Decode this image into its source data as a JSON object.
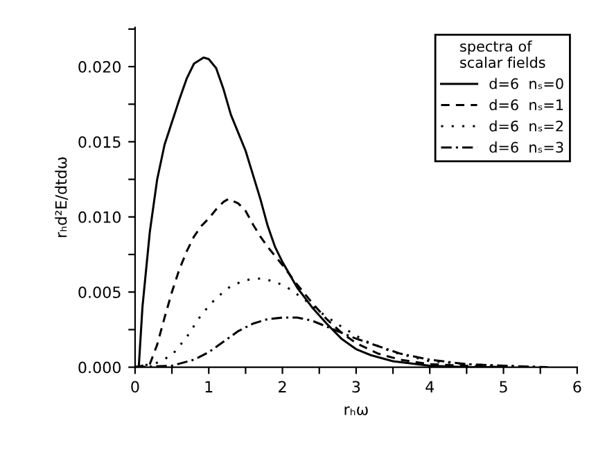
{
  "chart_data": {
    "type": "line",
    "xlabel": "rₕω",
    "ylabel": "rₕd²E/dtdω",
    "legend_title": "spectra of\nscalar fields",
    "legend": "top right",
    "grid": false,
    "marker": "none",
    "xlim": [
      0,
      6
    ],
    "ylim": [
      0,
      0.0226
    ],
    "xticks": [
      0,
      {
        "value": 0.5,
        "label": null
      },
      1,
      {
        "value": 1.5,
        "label": null
      },
      2,
      {
        "value": 2.5,
        "label": null
      },
      3,
      {
        "value": 3.5,
        "label": null
      },
      4,
      {
        "value": 4.5,
        "label": null
      },
      5,
      {
        "value": 5.5,
        "label": null
      },
      6
    ],
    "yticks": [
      {
        "value": 0,
        "label": "0.000"
      },
      {
        "value": 0.0025,
        "label": null
      },
      {
        "value": 0.005,
        "label": "0.005"
      },
      {
        "value": 0.0075,
        "label": null
      },
      {
        "value": 0.01,
        "label": "0.010"
      },
      {
        "value": 0.0125,
        "label": null
      },
      {
        "value": 0.015,
        "label": "0.015"
      },
      {
        "value": 0.0175,
        "label": null
      },
      {
        "value": 0.02,
        "label": "0.020"
      },
      {
        "value": 0.0225,
        "label": null
      }
    ],
    "series": [
      {
        "name": "d=6  nₛ=0",
        "color": "#000000",
        "line_style": "solid",
        "x": [
          0,
          0.05,
          0.1,
          0.2,
          0.3,
          0.4,
          0.5,
          0.6,
          0.7,
          0.8,
          0.93,
          1.0,
          1.1,
          1.2,
          1.3,
          1.4,
          1.5,
          1.6,
          1.7,
          1.8,
          1.9,
          2.0,
          2.2,
          2.4,
          2.6,
          2.8,
          3.0,
          3.2,
          3.5,
          4.0,
          4.5,
          5.0
        ],
        "values": [
          0,
          0,
          0.004,
          0.009,
          0.0125,
          0.0148,
          0.0163,
          0.0178,
          0.0192,
          0.0202,
          0.0206,
          0.0205,
          0.0199,
          0.0185,
          0.0168,
          0.0156,
          0.0144,
          0.0128,
          0.0112,
          0.0094,
          0.008,
          0.007,
          0.0053,
          0.004,
          0.0029,
          0.0019,
          0.0012,
          0.0008,
          0.0004,
          0.0001,
          0,
          0
        ]
      },
      {
        "name": "d=6  nₛ=1",
        "color": "#000000",
        "line_style": "dashed",
        "x": [
          0,
          0.2,
          0.3,
          0.4,
          0.5,
          0.6,
          0.7,
          0.8,
          0.9,
          1.0,
          1.1,
          1.2,
          1.27,
          1.4,
          1.5,
          1.6,
          1.7,
          1.8,
          2.0,
          2.2,
          2.4,
          2.6,
          2.8,
          3.0,
          3.3,
          3.6,
          4.0,
          4.5,
          5.0
        ],
        "values": [
          0,
          0.0002,
          0.0015,
          0.0033,
          0.005,
          0.0065,
          0.0077,
          0.0087,
          0.0094,
          0.0099,
          0.0105,
          0.011,
          0.0112,
          0.0109,
          0.0104,
          0.0095,
          0.0087,
          0.008,
          0.0068,
          0.0055,
          0.0043,
          0.0032,
          0.0023,
          0.0016,
          0.0009,
          0.0005,
          0.0002,
          0.0001,
          0
        ]
      },
      {
        "name": "d=6  nₛ=2",
        "color": "#000000",
        "line_style": "dotted",
        "x": [
          0,
          0.3,
          0.5,
          0.7,
          0.9,
          1.1,
          1.3,
          1.5,
          1.7,
          1.9,
          2.1,
          2.3,
          2.5,
          2.8,
          3.1,
          3.5,
          4.0,
          4.5,
          5.0,
          5.5
        ],
        "values": [
          0,
          0.0003,
          0.0008,
          0.002,
          0.0035,
          0.0046,
          0.0054,
          0.0058,
          0.0059,
          0.0057,
          0.0052,
          0.0045,
          0.0037,
          0.0027,
          0.0018,
          0.001,
          0.0004,
          0.0002,
          0.0001,
          0
        ]
      },
      {
        "name": "d=6  nₛ=3",
        "color": "#000000",
        "line_style": "dashdot",
        "x": [
          0,
          0.5,
          0.8,
          1.0,
          1.2,
          1.4,
          1.6,
          1.8,
          2.0,
          2.2,
          2.4,
          2.6,
          2.8,
          3.0,
          3.3,
          3.6,
          4.0,
          4.5,
          5.0,
          5.6
        ],
        "values": [
          0,
          0.0001,
          0.0005,
          0.001,
          0.0017,
          0.0024,
          0.0029,
          0.0032,
          0.0033,
          0.0033,
          0.0031,
          0.0027,
          0.0023,
          0.0019,
          0.0014,
          0.0009,
          0.0005,
          0.0002,
          0.0001,
          0
        ]
      }
    ]
  }
}
